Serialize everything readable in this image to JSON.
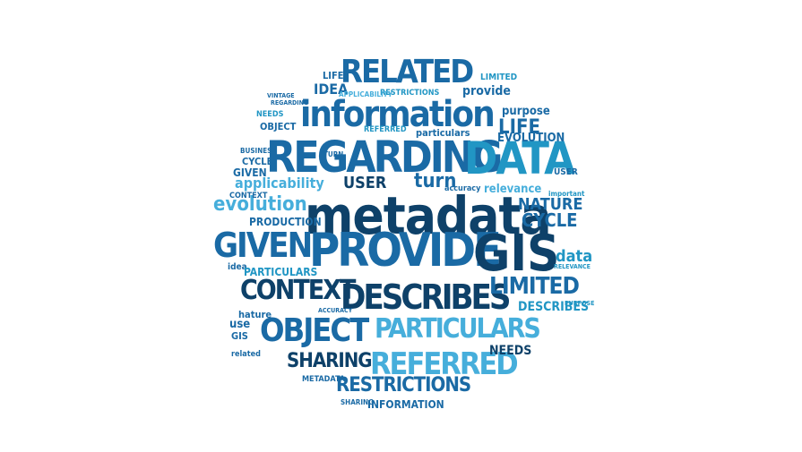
{
  "title": "",
  "colors": {
    "navy": "#0e4169",
    "blue": "#1a6aa5",
    "teal": "#2196c4",
    "sky": "#46aedb",
    "pale": "#7ec3e4"
  },
  "words": {
    "metadata": "metadata",
    "provide": "PROVIDE",
    "gis": "GIS",
    "regarding": "REGARDING",
    "data": "DATA",
    "information": "information",
    "related": "RELATED",
    "given": "GIVEN",
    "context": "CONTEXT",
    "describes": "DESCRIBES",
    "object": "OBJECT",
    "particulars": "PARTICULARS",
    "referred": "REFERRED",
    "sharing": "SHARING",
    "restrictions": "RESTRICTIONS",
    "limited": "LIMITED",
    "evolution": "evolution",
    "applicability": "applicability",
    "user": "USER",
    "turn": "turn",
    "nature": "NATURE",
    "cycle": "CYCLE",
    "life": "LIFE",
    "needs": "NEEDS",
    "idea": "IDEA",
    "relevance": "relevance",
    "purpose": "purpose",
    "production": "PRODUCTION",
    "accuracy": "accuracy",
    "data_lower": "data",
    "describes_small": "DESCRIBES",
    "provide_small": "provide",
    "information_small": "INFORMATION",
    "particulars_small": "particulars",
    "evolution_small": "EVOLUTION",
    "metadata_small": "METADATA",
    "use": "use",
    "hature": "hature",
    "gis_small": "GIS",
    "object_small": "OBJECT",
    "limited_small": "LIMITED",
    "context_small": "CONTEXT",
    "user_small": "USER",
    "vintage": "VINTAGE",
    "regarding_small": "REGARDING",
    "business": "BUSINESS",
    "restrictions_small": "RESTRICTIONS",
    "sharing_small": "SHARING",
    "life_small": "LIFE",
    "cycle_small": "CYCLE",
    "turn_small": "TURN",
    "given_small": "GIVEN",
    "related_small": "related",
    "idea_small": "idea",
    "needs_small": "NEEDS",
    "referred_small": "REFERRED",
    "important": "important",
    "relevance_small": "RELEVANCE",
    "purpose_small": "PURPOSE",
    "applicability_small": "APPLICABILITY",
    "particulars_small2": "PARTICULARS",
    "accuracy_small": "ACCURACY"
  }
}
